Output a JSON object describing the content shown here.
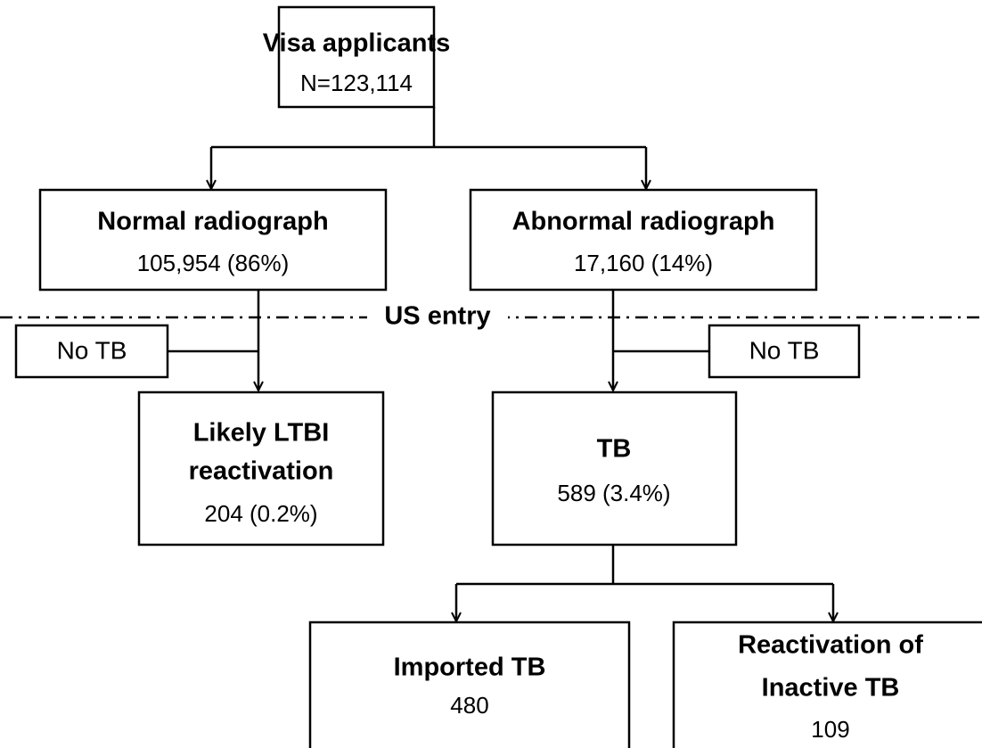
{
  "nodes": [
    {
      "lines": [
        "Visa applicants"
      ],
      "count": "N=123,114"
    },
    {
      "lines": [
        "Normal radiograph"
      ],
      "count": "105,954 (86%)"
    },
    {
      "lines": [
        "Abnormal radiograph"
      ],
      "count": "17,160 (14%)"
    },
    {
      "lines": [
        "No TB"
      ]
    },
    {
      "lines": [
        "No TB"
      ]
    },
    {
      "lines": [
        "Likely LTBI",
        "reactivation"
      ],
      "count": "204 (0.2%)"
    },
    {
      "lines": [
        "TB"
      ],
      "count": "589 (3.4%)"
    },
    {
      "lines": [
        "Imported TB"
      ],
      "count": "480"
    },
    {
      "lines": [
        "Reactivation of",
        "Inactive TB"
      ],
      "count": "109"
    }
  ],
  "separator": {
    "label": "US entry"
  }
}
